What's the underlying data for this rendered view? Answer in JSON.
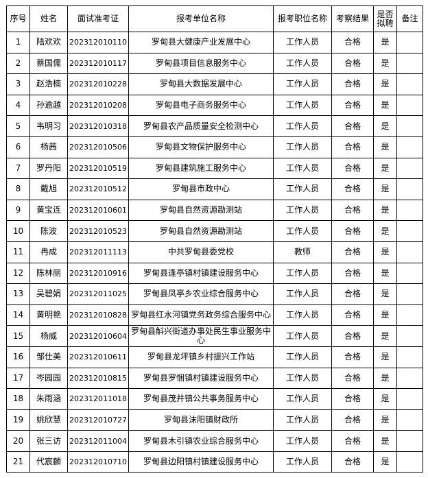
{
  "headers": [
    "序号",
    "姓名",
    "面试准考证",
    "报考单位名称",
    "报考职位名称",
    "考察结果",
    "是否拟聘",
    "备注"
  ],
  "rows": [
    [
      "1",
      "陆欢欢",
      "202312010110",
      "罗甸县大健康产业发展中心",
      "工作人员",
      "合格",
      "是",
      ""
    ],
    [
      "2",
      "蔡国儒",
      "202312010117",
      "罗甸县项目信息服务中心",
      "工作人员",
      "合格",
      "是",
      ""
    ],
    [
      "3",
      "赵浩楠",
      "202312010228",
      "罗甸县大数据发展中心",
      "工作人员",
      "合格",
      "是",
      ""
    ],
    [
      "4",
      "孙逾越",
      "202312010208",
      "罗甸县电子商务服务中心",
      "工作人员",
      "合格",
      "是",
      ""
    ],
    [
      "5",
      "韦明习",
      "202312010318",
      "罗甸县农产品质量安全检测中心",
      "工作人员",
      "合格",
      "是",
      ""
    ],
    [
      "6",
      "杨茜",
      "202312010506",
      "罗甸县文物保护服务中心",
      "工作人员",
      "合格",
      "是",
      ""
    ],
    [
      "7",
      "罗丹阳",
      "202312010519",
      "罗甸县建筑施工服务中心",
      "工作人员",
      "合格",
      "是",
      ""
    ],
    [
      "8",
      "戴旭",
      "202312010512",
      "罗甸县市政中心",
      "工作人员",
      "合格",
      "是",
      ""
    ],
    [
      "9",
      "黄宝连",
      "202312010601",
      "罗甸县自然资源勘测站",
      "工作人员",
      "合格",
      "是",
      ""
    ],
    [
      "10",
      "陈波",
      "202312010523",
      "罗甸县自然资源勘测站",
      "工作人员",
      "合格",
      "是",
      ""
    ],
    [
      "11",
      "冉成",
      "202312011113",
      "中共罗甸县委党校",
      "教师",
      "合格",
      "是",
      ""
    ],
    [
      "12",
      "陈林丽",
      "202312010916",
      "罗甸县逢亭镇村镇建设服务中心",
      "工作人员",
      "合格",
      "是",
      ""
    ],
    [
      "13",
      "吴碧娟",
      "202312011025",
      "罗甸县凤亭乡农业综合服务中心",
      "工作人员",
      "合格",
      "是",
      ""
    ],
    [
      "14",
      "黄明艳",
      "202312010828",
      "罗甸县红水河镇党务政务综合服务中心",
      "工作人员",
      "合格",
      "是",
      ""
    ],
    [
      "15",
      "杨威",
      "202312010604",
      "罗甸县斛兴街道办事处民生事业服务中心",
      "工作人员",
      "合格",
      "是",
      ""
    ],
    [
      "16",
      "邹仕美",
      "202312010611",
      "罗甸县龙坪镇乡村振兴工作站",
      "工作人员",
      "合格",
      "是",
      ""
    ],
    [
      "17",
      "岑园园",
      "202312010815",
      "罗甸县罗悃镇村镇建设服务中心",
      "工作人员",
      "合格",
      "是",
      ""
    ],
    [
      "18",
      "朱雨涵",
      "202312011018",
      "罗甸县茂井镇公共事务服务中心",
      "工作人员",
      "合格",
      "是",
      ""
    ],
    [
      "19",
      "姚欣慧",
      "202312010727",
      "罗甸县沫阳镇财政所",
      "工作人员",
      "合格",
      "是",
      ""
    ],
    [
      "20",
      "张三访",
      "202312011004",
      "罗甸县木引镇农业综合服务中心",
      "工作人员",
      "合格",
      "是",
      ""
    ],
    [
      "21",
      "代宸麟",
      "202312010710",
      "罗甸县边阳镇村镇建设服务中心",
      "工作人员",
      "合格",
      "是",
      ""
    ]
  ]
}
